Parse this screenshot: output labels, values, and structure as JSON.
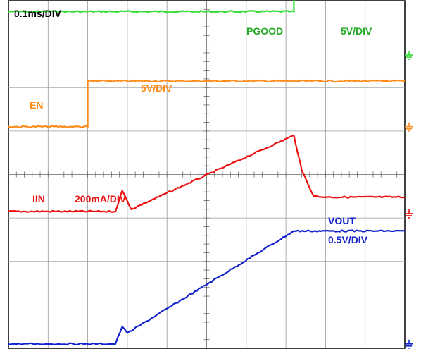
{
  "chart_data": {
    "type": "line",
    "title": "",
    "timebase": "0.1ms/DIV",
    "divisions": {
      "x": 10,
      "y": 8
    },
    "xlim": [
      0,
      1.0
    ],
    "x_unit": "ms",
    "grid": true,
    "series": [
      {
        "name": "PGOOD",
        "scale": "5V/DIV",
        "color": "#33dd33",
        "ground_div": 6.75,
        "x": [
          0,
          0.72,
          0.72,
          1.0
        ],
        "y": [
          1.0,
          1.0,
          2.0,
          2.0
        ]
      },
      {
        "name": "EN",
        "scale": "5V/DIV",
        "color": "#ff8c1a",
        "ground_div": 5.1,
        "x": [
          0,
          0.2,
          0.2,
          1.0
        ],
        "y": [
          0,
          0,
          1.05,
          1.05
        ]
      },
      {
        "name": "IIN",
        "scale": "200mA/DIV",
        "color": "#ee1111",
        "ground_div": 3.1,
        "x": [
          0,
          0.27,
          0.287,
          0.31,
          0.72,
          0.74,
          0.77,
          0.8,
          1.0
        ],
        "y": [
          0.05,
          0.05,
          0.53,
          0.1,
          1.8,
          1.0,
          0.4,
          0.38,
          0.38
        ]
      },
      {
        "name": "VOUT",
        "scale": "0.5V/DIV",
        "color": "#1122cc",
        "ground_div": 0.1,
        "x": [
          0,
          0.27,
          0.287,
          0.3,
          0.72,
          1.0
        ],
        "y": [
          0,
          0,
          0.4,
          0.25,
          2.6,
          2.6
        ]
      }
    ],
    "annotations": [
      "PGOOD",
      "5V/DIV",
      "EN",
      "5V/DIV",
      "IIN",
      "200mA/DIV",
      "VOUT",
      "0.5V/DIV"
    ]
  }
}
